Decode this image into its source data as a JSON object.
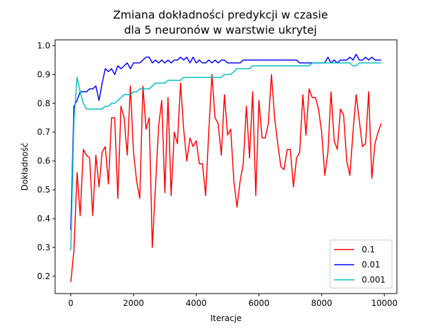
{
  "chart_data": {
    "type": "line",
    "title_line1": "Zmiana dokładności predykcji w czasie",
    "title_line2": "dla 5 neuronów w warstwie ukrytej",
    "xlabel": "Iteracje",
    "ylabel": "Dokładność",
    "xlim": [
      -500,
      10400
    ],
    "ylim": [
      0.14,
      1.02
    ],
    "xticks": [
      0,
      2000,
      4000,
      6000,
      8000,
      10000
    ],
    "yticks": [
      0.2,
      0.3,
      0.4,
      0.5,
      0.6,
      0.7,
      0.8,
      0.9,
      1.0
    ],
    "xtick_labels": [
      "0",
      "2000",
      "4000",
      "6000",
      "8000",
      "10000"
    ],
    "ytick_labels": [
      "0.2",
      "0.3",
      "0.4",
      "0.5",
      "0.6",
      "0.7",
      "0.8",
      "0.9",
      "1.0"
    ],
    "legend_position": "lower right",
    "x": [
      0,
      100,
      200,
      300,
      400,
      500,
      600,
      700,
      800,
      900,
      1000,
      1100,
      1200,
      1300,
      1400,
      1500,
      1600,
      1700,
      1800,
      1900,
      2000,
      2100,
      2200,
      2300,
      2400,
      2500,
      2600,
      2700,
      2800,
      2900,
      3000,
      3100,
      3200,
      3300,
      3400,
      3500,
      3600,
      3700,
      3800,
      3900,
      4000,
      4100,
      4200,
      4300,
      4400,
      4500,
      4600,
      4700,
      4800,
      4900,
      5000,
      5100,
      5200,
      5300,
      5400,
      5500,
      5600,
      5700,
      5800,
      5900,
      6000,
      6100,
      6200,
      6300,
      6400,
      6500,
      6600,
      6700,
      6800,
      6900,
      7000,
      7100,
      7200,
      7300,
      7400,
      7500,
      7600,
      7700,
      7800,
      7900,
      8000,
      8100,
      8200,
      8300,
      8400,
      8500,
      8600,
      8700,
      8800,
      8900,
      9000,
      9100,
      9200,
      9300,
      9400,
      9500,
      9600,
      9700,
      9800,
      9900
    ],
    "series": [
      {
        "name": "0.1",
        "color": "#ff0000",
        "values": [
          0.18,
          0.29,
          0.56,
          0.41,
          0.64,
          0.62,
          0.61,
          0.41,
          0.62,
          0.51,
          0.63,
          0.65,
          0.52,
          0.75,
          0.75,
          0.47,
          0.79,
          0.75,
          0.62,
          0.86,
          0.63,
          0.53,
          0.47,
          0.86,
          0.71,
          0.75,
          0.3,
          0.51,
          0.72,
          0.81,
          0.49,
          0.82,
          0.48,
          0.7,
          0.66,
          0.87,
          0.71,
          0.6,
          0.68,
          0.65,
          0.67,
          0.59,
          0.59,
          0.48,
          0.7,
          0.9,
          0.75,
          0.73,
          0.62,
          0.83,
          0.69,
          0.71,
          0.53,
          0.44,
          0.53,
          0.59,
          0.79,
          0.61,
          0.84,
          0.48,
          0.81,
          0.68,
          0.68,
          0.73,
          0.9,
          0.75,
          0.66,
          0.58,
          0.57,
          0.64,
          0.64,
          0.51,
          0.61,
          0.63,
          0.83,
          0.69,
          0.85,
          0.82,
          0.82,
          0.78,
          0.7,
          0.55,
          0.63,
          0.84,
          0.67,
          0.64,
          0.78,
          0.76,
          0.6,
          0.55,
          0.7,
          0.83,
          0.74,
          0.65,
          0.66,
          0.84,
          0.54,
          0.66,
          0.7,
          0.73
        ]
      },
      {
        "name": "0.01",
        "color": "#0000ff",
        "values": [
          0.36,
          0.79,
          0.81,
          0.84,
          0.84,
          0.84,
          0.85,
          0.85,
          0.86,
          0.81,
          0.87,
          0.92,
          0.91,
          0.92,
          0.9,
          0.93,
          0.92,
          0.93,
          0.94,
          0.92,
          0.94,
          0.94,
          0.94,
          0.95,
          0.96,
          0.96,
          0.94,
          0.95,
          0.94,
          0.95,
          0.94,
          0.95,
          0.94,
          0.95,
          0.95,
          0.96,
          0.95,
          0.96,
          0.94,
          0.96,
          0.94,
          0.95,
          0.94,
          0.94,
          0.95,
          0.94,
          0.95,
          0.94,
          0.95,
          0.95,
          0.94,
          0.94,
          0.94,
          0.94,
          0.94,
          0.95,
          0.95,
          0.95,
          0.95,
          0.95,
          0.95,
          0.95,
          0.95,
          0.95,
          0.95,
          0.95,
          0.95,
          0.95,
          0.95,
          0.95,
          0.95,
          0.95,
          0.95,
          0.94,
          0.94,
          0.94,
          0.94,
          0.94,
          0.94,
          0.94,
          0.94,
          0.94,
          0.96,
          0.94,
          0.95,
          0.94,
          0.95,
          0.95,
          0.95,
          0.96,
          0.95,
          0.97,
          0.95,
          0.95,
          0.96,
          0.95,
          0.96,
          0.95,
          0.95,
          0.95
        ]
      },
      {
        "name": "0.001",
        "color": "#00bfbf",
        "values": [
          0.29,
          0.74,
          0.89,
          0.84,
          0.8,
          0.78,
          0.78,
          0.78,
          0.78,
          0.78,
          0.78,
          0.79,
          0.79,
          0.8,
          0.8,
          0.81,
          0.82,
          0.83,
          0.83,
          0.83,
          0.84,
          0.84,
          0.85,
          0.85,
          0.85,
          0.85,
          0.86,
          0.87,
          0.87,
          0.87,
          0.87,
          0.88,
          0.88,
          0.88,
          0.88,
          0.88,
          0.89,
          0.89,
          0.89,
          0.89,
          0.89,
          0.89,
          0.89,
          0.89,
          0.89,
          0.89,
          0.89,
          0.89,
          0.89,
          0.9,
          0.9,
          0.9,
          0.91,
          0.92,
          0.92,
          0.92,
          0.92,
          0.92,
          0.93,
          0.93,
          0.93,
          0.93,
          0.93,
          0.93,
          0.93,
          0.93,
          0.93,
          0.93,
          0.93,
          0.93,
          0.93,
          0.93,
          0.93,
          0.93,
          0.93,
          0.93,
          0.93,
          0.94,
          0.94,
          0.94,
          0.94,
          0.94,
          0.94,
          0.94,
          0.94,
          0.94,
          0.94,
          0.94,
          0.94,
          0.94,
          0.93,
          0.93,
          0.94,
          0.94,
          0.94,
          0.94,
          0.94,
          0.94,
          0.94,
          0.94
        ]
      }
    ]
  }
}
